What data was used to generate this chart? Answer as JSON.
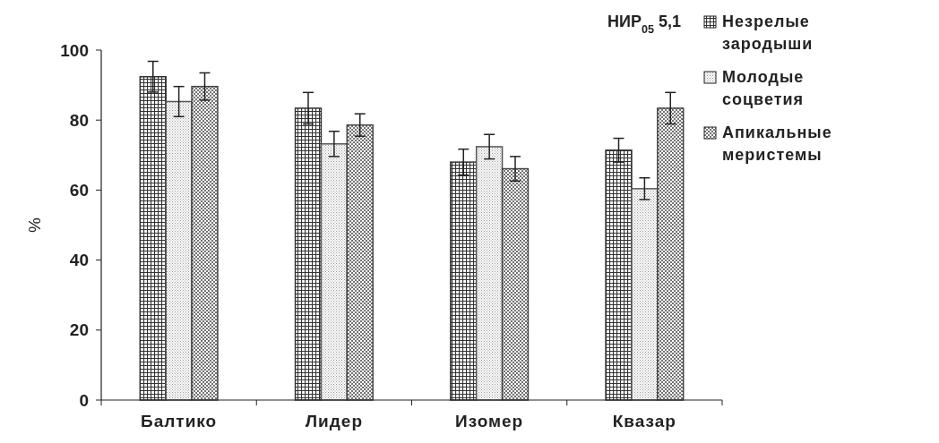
{
  "chart_data": {
    "type": "bar",
    "ylabel": "%",
    "categories": [
      "Балтико",
      "Лидер",
      "Изомер",
      "Квазар"
    ],
    "series": [
      {
        "name": "Незрелые зародыши",
        "color": "#333333",
        "values": [
          92.4,
          83.4,
          68.0,
          71.4
        ],
        "errors": [
          4.4,
          4.5,
          3.7,
          3.4
        ]
      },
      {
        "name": "Молодые соцветия",
        "color": "#555555",
        "values": [
          85.3,
          73.2,
          72.4,
          60.4
        ],
        "errors": [
          4.3,
          3.6,
          3.5,
          3.1
        ]
      },
      {
        "name": "Апикальные меристемы",
        "color": "#444444",
        "values": [
          89.6,
          78.6,
          66.1,
          83.4
        ],
        "errors": [
          3.9,
          3.2,
          3.5,
          4.5
        ]
      }
    ],
    "ylim": [
      0,
      100
    ],
    "yticks": [
      0,
      20,
      40,
      60,
      80,
      100
    ],
    "grid": false,
    "legend": "right",
    "annotations": [
      "НИР$_{05}$ 5,1"
    ]
  }
}
